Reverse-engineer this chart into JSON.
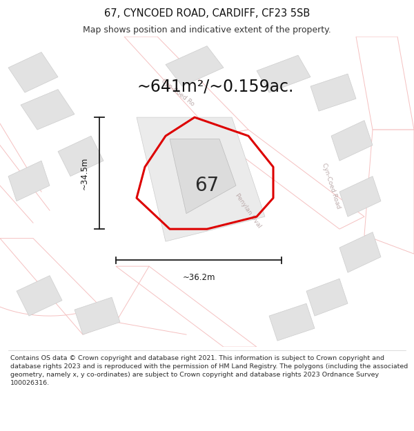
{
  "title": "67, CYNCOED ROAD, CARDIFF, CF23 5SB",
  "subtitle": "Map shows position and indicative extent of the property.",
  "footer": "Contains OS data © Crown copyright and database right 2021. This information is subject to Crown copyright and database rights 2023 and is reproduced with the permission of HM Land Registry. The polygons (including the associated geometry, namely x, y co-ordinates) are subject to Crown copyright and database rights 2023 Ordnance Survey 100026316.",
  "area_label": "~641m²/~0.159ac.",
  "property_number": "67",
  "dim_width": "~36.2m",
  "dim_height": "~34.5m",
  "map_bg": "#f7f7f7",
  "road_color": "#f5c0c0",
  "road_fill": "#ffffff",
  "building_fill": "#e2e2e2",
  "building_stroke": "#cccccc",
  "highlight_color": "#dd0000",
  "highlight_lw": 2.2,
  "title_fontsize": 10.5,
  "subtitle_fontsize": 9,
  "area_fontsize": 17,
  "number_fontsize": 20,
  "road_label_color": "#bbaaaa",
  "dim_color": "#1a1a1a",
  "footer_fontsize": 6.8
}
